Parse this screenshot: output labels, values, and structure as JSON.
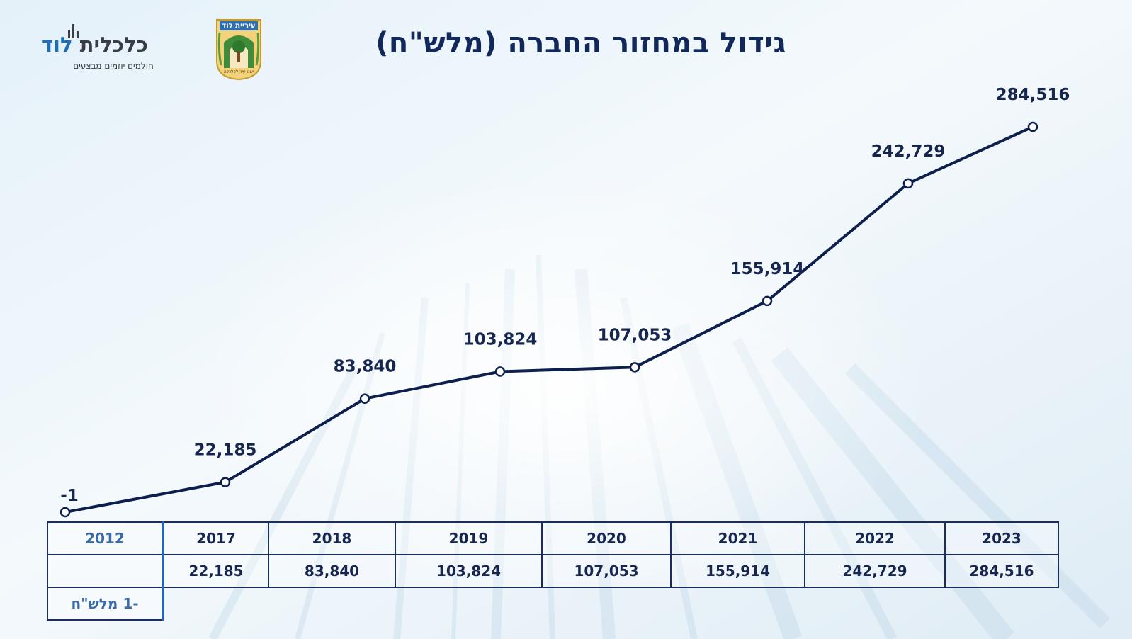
{
  "title": "גידול במחזור החברה (מלש\"ח)",
  "brand": {
    "name_part1": "כלכלית",
    "name_part2": "לוד",
    "tagline": "חולמים יוזמים מבצעים",
    "icon": "bar-chart-logo-icon"
  },
  "emblem": {
    "top_text": "עיריית לוד",
    "bottom_text": "ישנו עיר לכלכלה",
    "icon": "city-emblem-icon"
  },
  "colors": {
    "line": "#0d1f4d",
    "label": "#16264f",
    "first_column": "#3a6aa8",
    "table_border": "#1a2d5c"
  },
  "chart_data": {
    "type": "line",
    "categories": [
      "2012",
      "2017",
      "2018",
      "2019",
      "2020",
      "2021",
      "2022",
      "2023"
    ],
    "values": [
      -1,
      22185,
      83840,
      103824,
      107053,
      155914,
      242729,
      284516
    ],
    "data_labels": [
      "-1",
      "22,185",
      "83,840",
      "103,824",
      "107,053",
      "155,914",
      "242,729",
      "284,516"
    ],
    "marker": "hollow-circle",
    "grid": false,
    "legend": "none"
  },
  "table": {
    "years": [
      "2012",
      "2017",
      "2018",
      "2019",
      "2020",
      "2021",
      "2022",
      "2023"
    ],
    "values": [
      "",
      "22,185",
      "83,840",
      "103,824",
      "107,053",
      "155,914",
      "242,729",
      "284,516"
    ],
    "first_value_note": "-1 מלש\"ח"
  }
}
